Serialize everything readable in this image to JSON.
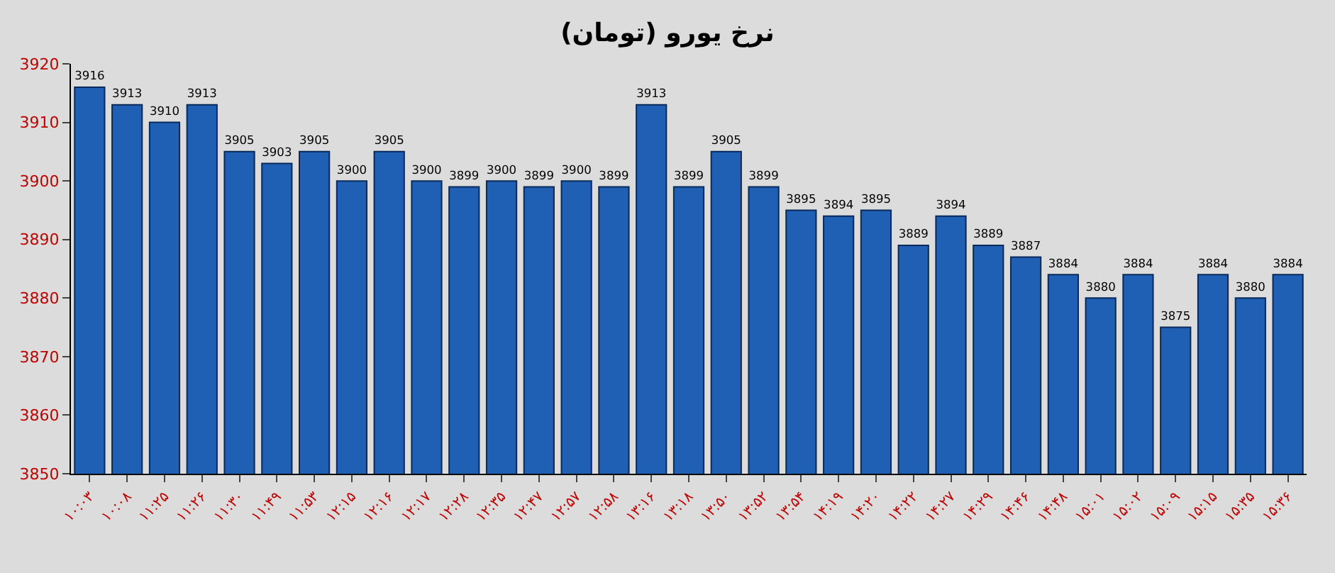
{
  "chart_data": {
    "type": "bar",
    "title": "نرخ یورو (تومان)",
    "categories": [
      "۱۰:۰۳",
      "۱۰:۰۸",
      "۱۱:۲۵",
      "۱۱:۲۶",
      "۱۱:۳۰",
      "۱۱:۴۹",
      "۱۱:۵۳",
      "۱۲:۱۵",
      "۱۲:۱۶",
      "۱۲:۱۷",
      "۱۲:۲۸",
      "۱۲:۳۵",
      "۱۲:۴۷",
      "۱۲:۵۷",
      "۱۲:۵۸",
      "۱۳:۱۶",
      "۱۳:۱۸",
      "۱۳:۵۰",
      "۱۳:۵۲",
      "۱۳:۵۴",
      "۱۴:۱۹",
      "۱۴:۲۰",
      "۱۴:۲۲",
      "۱۴:۲۷",
      "۱۴:۲۹",
      "۱۴:۴۶",
      "۱۴:۴۸",
      "۱۵:۰۱",
      "۱۵:۰۲",
      "۱۵:۰۹",
      "۱۵:۱۵",
      "۱۵:۳۵",
      "۱۵:۳۶"
    ],
    "values": [
      3916,
      3913,
      3910,
      3913,
      3905,
      3903,
      3905,
      3900,
      3905,
      3900,
      3899,
      3900,
      3899,
      3900,
      3899,
      3913,
      3899,
      3905,
      3899,
      3895,
      3894,
      3895,
      3889,
      3894,
      3889,
      3887,
      3884,
      3880,
      3884,
      3875,
      3884,
      3880,
      3884
    ],
    "color": "#1f5fb4",
    "ylim": [
      3850,
      3920
    ],
    "yticks": [
      3850,
      3860,
      3870,
      3880,
      3890,
      3900,
      3910,
      3920
    ],
    "grid": false,
    "data_labels": true
  }
}
